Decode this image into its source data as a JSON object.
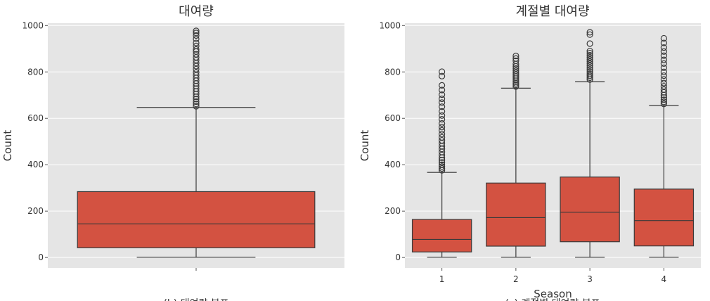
{
  "chart_data": [
    {
      "type": "box",
      "title": "대여량",
      "xlabel": "",
      "ylabel": "Count",
      "ylim": [
        -45,
        1010
      ],
      "yticks": [
        0,
        200,
        400,
        600,
        800,
        1000
      ],
      "grid": true,
      "boxes": [
        {
          "category": "",
          "whisker_low": 1,
          "q1": 42,
          "median": 145,
          "q3": 284,
          "whisker_high": 647,
          "outliers": [
            652,
            662,
            672,
            683,
            693,
            705,
            716,
            728,
            739,
            750,
            762,
            774,
            786,
            798,
            812,
            825,
            838,
            851,
            863,
            876,
            888,
            897,
            912,
            925,
            942,
            957,
            968,
            977
          ]
        }
      ],
      "bottom_caption": "(b) 대여량 분포"
    },
    {
      "type": "box",
      "title": "계절별 대여량",
      "xlabel": "Season",
      "ylabel": "Count",
      "ylim": [
        -45,
        1010
      ],
      "yticks": [
        0,
        200,
        400,
        600,
        800,
        1000
      ],
      "grid": true,
      "categories": [
        "1",
        "2",
        "3",
        "4"
      ],
      "boxes": [
        {
          "category": "1",
          "whisker_low": 1,
          "q1": 24,
          "median": 78,
          "q3": 164,
          "whisker_high": 367,
          "outliers": [
            376,
            384,
            392,
            400,
            410,
            420,
            430,
            442,
            455,
            468,
            480,
            493,
            505,
            518,
            532,
            548,
            562,
            578,
            596,
            612,
            630,
            650,
            668,
            684,
            702,
            722,
            742,
            782,
            801
          ]
        },
        {
          "category": "2",
          "whisker_low": 1,
          "q1": 49,
          "median": 172,
          "q3": 321,
          "whisker_high": 730,
          "outliers": [
            737,
            744,
            751,
            758,
            766,
            774,
            782,
            790,
            798,
            806,
            815,
            824,
            834,
            848,
            858,
            869
          ]
        },
        {
          "category": "3",
          "whisker_low": 1,
          "q1": 68,
          "median": 195,
          "q3": 347,
          "whisker_high": 758,
          "outliers": [
            767,
            775,
            783,
            791,
            800,
            809,
            818,
            827,
            836,
            845,
            854,
            863,
            872,
            881,
            890,
            922,
            961,
            971
          ]
        },
        {
          "category": "4",
          "whisker_low": 1,
          "q1": 50,
          "median": 159,
          "q3": 295,
          "whisker_high": 655,
          "outliers": [
            662,
            671,
            680,
            690,
            700,
            712,
            724,
            738,
            752,
            768,
            784,
            800,
            818,
            836,
            852,
            870,
            888,
            905,
            925,
            945
          ]
        }
      ],
      "bottom_caption": "(c) 계절별 대여량 분포"
    }
  ],
  "colors": {
    "box_fill": "#d35241",
    "box_edge": "#3a3a3a",
    "axes_bg": "#e5e5e5",
    "grid": "#ffffff"
  }
}
